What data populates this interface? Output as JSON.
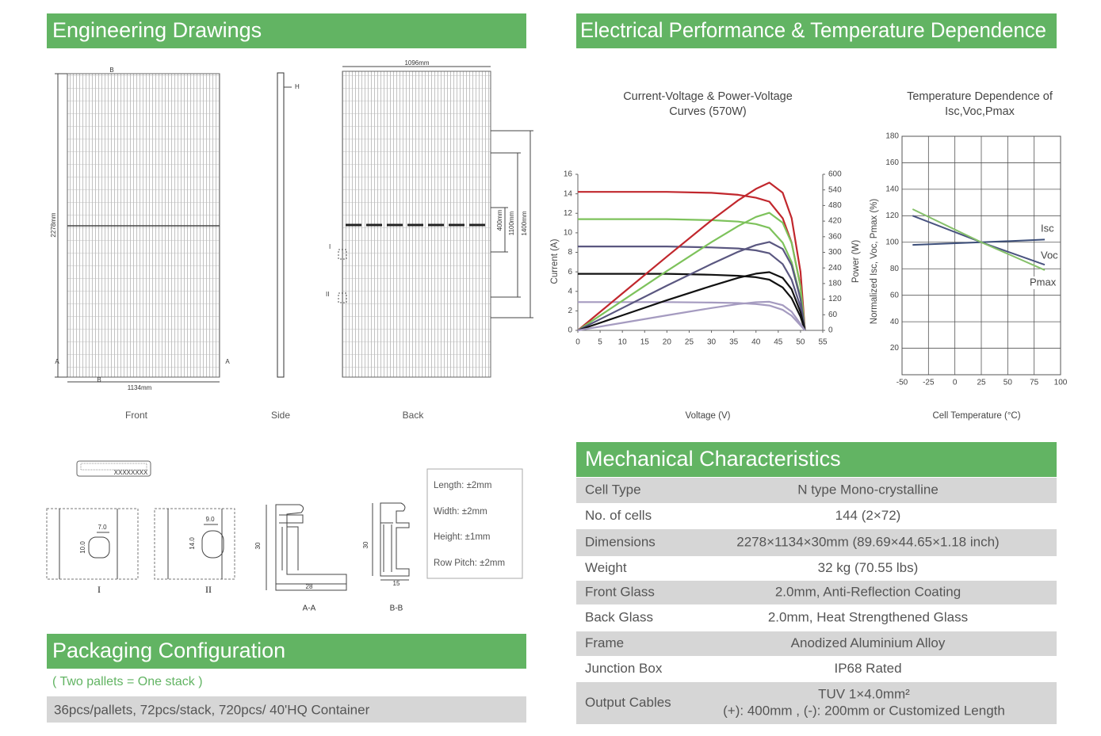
{
  "drawings": {
    "title": "Engineering Drawings",
    "views": [
      "Front",
      "Side",
      "Back"
    ],
    "dimensions": {
      "height": "2278mm",
      "width": "1134mm",
      "back_width": "1096mm",
      "span_400": "400mm",
      "span_1100": "1100mm",
      "span_1400": "1400mm"
    },
    "markers": {
      "a": "A",
      "b": "B",
      "h": "H",
      "i": "I",
      "ii": "II"
    },
    "label_code": "XXXXXXXX",
    "details": [
      {
        "label": "I",
        "width": "7.0",
        "height": "10.0"
      },
      {
        "label": "II",
        "width": "9.0",
        "height": "14.0"
      }
    ],
    "profiles": [
      {
        "label": "A-A",
        "height": "30",
        "width": "28"
      },
      {
        "label": "B-B",
        "height": "30",
        "width": "15"
      }
    ],
    "tolerances": [
      "Length: ±2mm",
      "Width: ±2mm",
      "Height: ±1mm",
      "Row Pitch: ±2mm"
    ]
  },
  "electrical": {
    "title": "Electrical Performance & Temperature Dependence",
    "iv_chart": {
      "type": "line",
      "title": [
        "Current-Voltage & Power-Voltage",
        "Curves (570W)"
      ],
      "x_label": "Voltage (V)",
      "y_label": "Current (A)",
      "y2_label": "Power (W)",
      "x": [
        0,
        10,
        20,
        30,
        36,
        40,
        43,
        46,
        48,
        50,
        51
      ],
      "xlim": [
        0,
        55
      ],
      "xticks": [
        0,
        5,
        10,
        15,
        20,
        25,
        30,
        35,
        40,
        45,
        50,
        55
      ],
      "ylim": [
        0,
        16
      ],
      "yticks": [
        0,
        2,
        4,
        6,
        8,
        10,
        12,
        14,
        16
      ],
      "y2lim": [
        0,
        600
      ],
      "y2ticks": [
        0,
        60,
        120,
        180,
        240,
        300,
        360,
        420,
        480,
        540,
        600
      ],
      "series": [
        {
          "color": "#c1272d",
          "values": [
            14.2,
            14.2,
            14.2,
            14.1,
            13.9,
            13.6,
            13.2,
            11.5,
            9,
            4.5,
            0
          ]
        },
        {
          "color": "#7dc25b",
          "values": [
            11.4,
            11.4,
            11.4,
            11.3,
            11.15,
            10.9,
            10.5,
            9,
            7,
            3.4,
            0
          ]
        },
        {
          "color": "#5a5780",
          "values": [
            8.6,
            8.6,
            8.6,
            8.5,
            8.4,
            8.2,
            7.9,
            6.8,
            5.2,
            2.4,
            0
          ]
        },
        {
          "color": "#111111",
          "values": [
            5.8,
            5.8,
            5.8,
            5.7,
            5.6,
            5.45,
            5.2,
            4.4,
            3.3,
            1.4,
            0
          ]
        },
        {
          "color": "#a59bc0",
          "values": [
            2.9,
            2.9,
            2.9,
            2.85,
            2.8,
            2.7,
            2.55,
            2.1,
            1.5,
            0.5,
            0
          ]
        },
        {
          "color": "#c1272d",
          "axis": "y2",
          "values": [
            0,
            142,
            284,
            423,
            500,
            544,
            568,
            529,
            432,
            225,
            0
          ]
        },
        {
          "color": "#7dc25b",
          "axis": "y2",
          "values": [
            0,
            114,
            228,
            339,
            401,
            436,
            452,
            414,
            336,
            170,
            0
          ]
        },
        {
          "color": "#5a5780",
          "axis": "y2",
          "values": [
            0,
            86,
            172,
            255,
            302,
            328,
            340,
            313,
            250,
            120,
            0
          ]
        },
        {
          "color": "#111111",
          "axis": "y2",
          "values": [
            0,
            58,
            116,
            171,
            202,
            218,
            224,
            202,
            158,
            70,
            0
          ]
        },
        {
          "color": "#a59bc0",
          "axis": "y2",
          "values": [
            0,
            29,
            58,
            86,
            101,
            108,
            110,
            97,
            72,
            25,
            0
          ]
        }
      ]
    },
    "temp_chart": {
      "type": "line",
      "title": [
        "Temperature Dependence of",
        "Isc,Voc,Pmax"
      ],
      "x_label": "Cell Temperature (°C)",
      "y_label": "Normalized Isc, Voc, Pmax (%)",
      "x": [
        -40,
        25,
        85
      ],
      "xlim": [
        -50,
        100
      ],
      "xticks": [
        -50,
        -25,
        0,
        25,
        50,
        75,
        100
      ],
      "ylim": [
        0,
        180
      ],
      "yticks": [
        20,
        40,
        60,
        80,
        100,
        120,
        140,
        160,
        180
      ],
      "grid": true,
      "series": [
        {
          "name": "Isc",
          "color": "#3d4f7a",
          "values": [
            98,
            100,
            102
          ]
        },
        {
          "name": "Voc",
          "color": "#4a5480",
          "values": [
            120,
            100,
            83
          ]
        },
        {
          "name": "Pmax",
          "color": "#86c06a",
          "values": [
            125,
            100,
            79
          ]
        }
      ]
    }
  },
  "mechanical": {
    "title": "Mechanical Characteristics",
    "rows": [
      {
        "label": "Cell Type",
        "value": "N type Mono-crystalline"
      },
      {
        "label": "No. of cells",
        "value": "144 (2×72)"
      },
      {
        "label": "Dimensions",
        "value": "2278×1134×30mm (89.69×44.65×1.18 inch)"
      },
      {
        "label": "Weight",
        "value": "32 kg (70.55 lbs)"
      },
      {
        "label": "Front Glass",
        "value": "2.0mm, Anti-Reflection Coating"
      },
      {
        "label": "Back Glass",
        "value": "2.0mm, Heat Strengthened Glass"
      },
      {
        "label": "Frame",
        "value": "Anodized Aluminium Alloy"
      },
      {
        "label": "Junction Box",
        "value": "IP68 Rated"
      },
      {
        "label": "Output Cables",
        "value": [
          "TUV 1×4.0mm²",
          "(+): 400mm , (-): 200mm or Customized Length"
        ]
      }
    ]
  },
  "packaging": {
    "title": "Packaging Configuration",
    "note": "( Two pallets = One stack )",
    "detail": "36pcs/pallets, 72pcs/stack, 720pcs/ 40'HQ Container"
  }
}
